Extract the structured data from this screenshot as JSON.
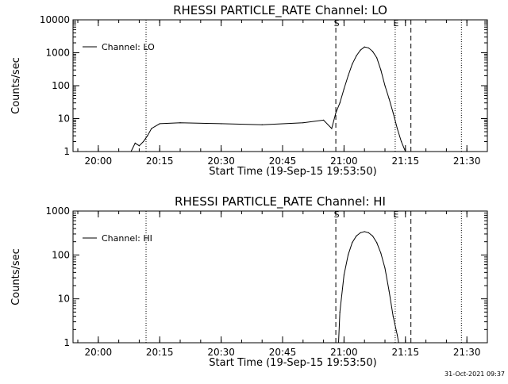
{
  "chart_data": [
    {
      "type": "line",
      "title": "RHESSI PARTICLE_RATE Channel: LO",
      "xlabel": "Start Time (19-Sep-15 19:53:50)",
      "ylabel": "Counts/sec",
      "y_scale": "log",
      "ylim": [
        1,
        10000
      ],
      "xlim_minutes": [
        "19:53:50",
        "21:35:00"
      ],
      "x_tick_labels": [
        "20:00",
        "20:15",
        "20:30",
        "20:45",
        "21:00",
        "21:15",
        "21:30"
      ],
      "y_tick_labels": [
        "1",
        "10",
        "100",
        "1000",
        "10000"
      ],
      "legend": {
        "placement": "top-left",
        "label": "Channel: LO"
      },
      "markers": [
        {
          "label": "",
          "time": "20:11:40",
          "style": "dotted"
        },
        {
          "label": "S",
          "time": "20:58:00",
          "style": "dashed"
        },
        {
          "label": "E",
          "time": "21:12:30",
          "style": "dotted"
        },
        {
          "label": "",
          "time": "21:16:20",
          "style": "dashed"
        },
        {
          "label": "",
          "time": "21:28:40",
          "style": "dotted"
        }
      ],
      "series": [
        {
          "x": [
            "19:53:50",
            "19:57:00",
            "20:00:00",
            "20:05:00",
            "20:08:00",
            "20:09:00",
            "20:10:00",
            "20:11:00",
            "20:12:00",
            "20:13:00",
            "20:15:00",
            "20:20:00",
            "20:30:00",
            "20:40:00",
            "20:50:00",
            "20:55:00",
            "20:57:00",
            "20:58:00",
            "20:59:00",
            "21:00:00",
            "21:01:00",
            "21:02:00",
            "21:03:00",
            "21:04:00",
            "21:05:00",
            "21:06:00",
            "21:07:00",
            "21:08:00",
            "21:09:00",
            "21:10:00",
            "21:11:00",
            "21:12:00",
            "21:13:00",
            "21:14:00",
            "21:15:00",
            "21:20:00",
            "21:25:00",
            "21:30:00",
            "21:35:00"
          ],
          "values": [
            1,
            1,
            1,
            1,
            1,
            1.8,
            1.5,
            2,
            3,
            5,
            7,
            7.5,
            7,
            6.5,
            7.5,
            9,
            5,
            15,
            30,
            80,
            200,
            450,
            800,
            1200,
            1500,
            1400,
            1100,
            700,
            300,
            100,
            40,
            15,
            5,
            2,
            1,
            1,
            1,
            1,
            1
          ]
        }
      ]
    },
    {
      "type": "line",
      "title": "RHESSI PARTICLE_RATE Channel: HI",
      "xlabel": "Start Time (19-Sep-15 19:53:50)",
      "ylabel": "Counts/sec",
      "y_scale": "log",
      "ylim": [
        1,
        1000
      ],
      "xlim_minutes": [
        "19:53:50",
        "21:35:00"
      ],
      "x_tick_labels": [
        "20:00",
        "20:15",
        "20:30",
        "20:45",
        "21:00",
        "21:15",
        "21:30"
      ],
      "y_tick_labels": [
        "1",
        "10",
        "100",
        "1000"
      ],
      "legend": {
        "placement": "top-left",
        "label": "Channel: HI"
      },
      "markers": [
        {
          "label": "",
          "time": "20:11:40",
          "style": "dotted"
        },
        {
          "label": "S",
          "time": "20:58:00",
          "style": "dashed"
        },
        {
          "label": "E",
          "time": "21:12:30",
          "style": "dotted"
        },
        {
          "label": "",
          "time": "21:16:20",
          "style": "dashed"
        },
        {
          "label": "",
          "time": "21:28:40",
          "style": "dotted"
        }
      ],
      "series": [
        {
          "x": [
            "20:58:40",
            "20:59:00",
            "21:00:00",
            "21:01:00",
            "21:02:00",
            "21:03:00",
            "21:04:00",
            "21:05:00",
            "21:06:00",
            "21:07:00",
            "21:08:00",
            "21:09:00",
            "21:10:00",
            "21:11:00",
            "21:12:00",
            "21:13:00",
            "21:13:20"
          ],
          "values": [
            1,
            5,
            35,
            100,
            190,
            270,
            320,
            340,
            320,
            270,
            190,
            110,
            50,
            15,
            4,
            1.5,
            1
          ]
        }
      ]
    }
  ],
  "footer": {
    "timestamp": "31-Oct-2021 09:37"
  }
}
